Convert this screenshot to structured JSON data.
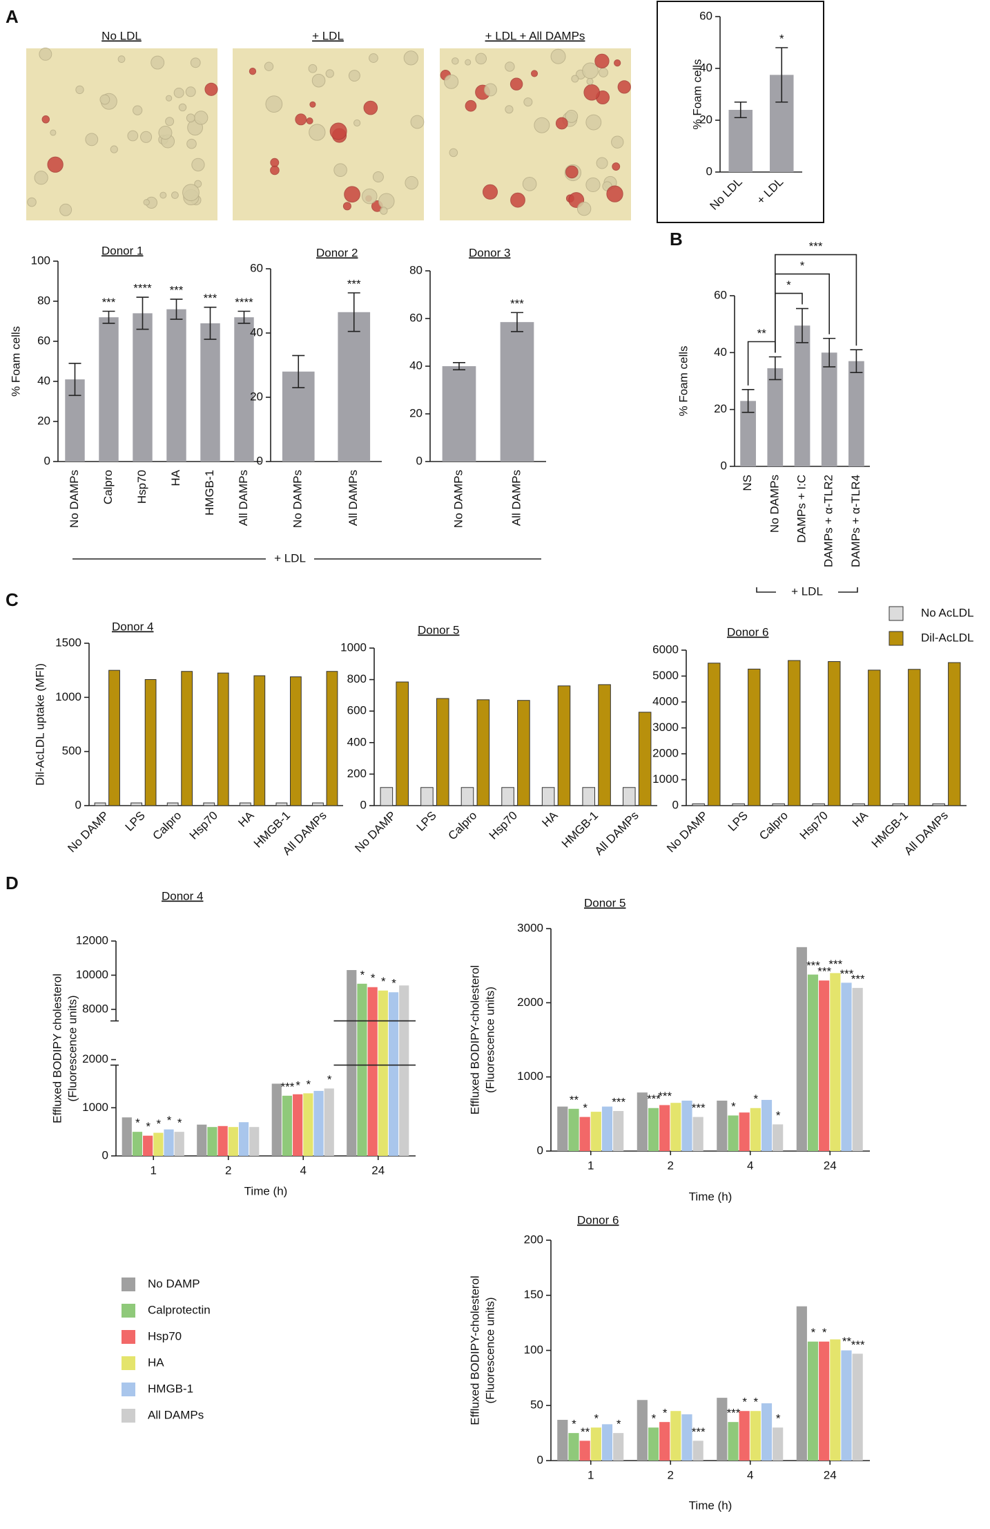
{
  "panels": [
    "A",
    "B",
    "C",
    "D"
  ],
  "image_labels": [
    "No LDL",
    "+ LDL",
    "+ LDL + All DAMPs"
  ],
  "group_labels": [
    "+ LDL",
    "+ LDL"
  ],
  "c_legend": [
    {
      "name": "No AcLDL",
      "color": "#dcdcdc"
    },
    {
      "name": "Dil-AcLDL",
      "color": "#b8900c"
    }
  ],
  "d_legend": [
    {
      "name": "No DAMP",
      "color": "#a0a0a0"
    },
    {
      "name": "Calprotectin",
      "color": "#8fc97a"
    },
    {
      "name": "Hsp70",
      "color": "#f26868"
    },
    {
      "name": "HA",
      "color": "#e4e46c"
    },
    {
      "name": "HMGB-1",
      "color": "#a9c6ec"
    },
    {
      "name": "All DAMPs",
      "color": "#cdcdcd"
    }
  ],
  "chart_data": [
    {
      "type": "bar",
      "ylabel": [
        "% Foam cells"
      ],
      "categories": [
        "No LDL",
        "+ LDL"
      ],
      "values": [
        24,
        37.5
      ],
      "errors": [
        3,
        10.5
      ],
      "annotations": [
        null,
        "*"
      ],
      "ylim": [
        0,
        60
      ],
      "yticks": [
        0,
        20,
        40,
        60
      ],
      "color": "#a2a2a8"
    },
    {
      "type": "bar",
      "title": "Donor 1",
      "ylabel": [
        "% Foam cells"
      ],
      "categories": [
        "No DAMPs",
        "Calpro",
        "Hsp70",
        "HA",
        "HMGB-1",
        "All DAMPs"
      ],
      "values": [
        41,
        72,
        74,
        76,
        69,
        72
      ],
      "errors": [
        8,
        3,
        8,
        5,
        8,
        3
      ],
      "annotations": [
        null,
        "***",
        "****",
        "***",
        "***",
        "****"
      ],
      "ylim": [
        0,
        100
      ],
      "yticks": [
        0,
        20,
        40,
        60,
        80,
        100
      ],
      "color": "#a2a2a8"
    },
    {
      "type": "bar",
      "title": "Donor 2",
      "categories": [
        "No DAMPs",
        "All DAMPs"
      ],
      "values": [
        28,
        46.5
      ],
      "errors": [
        5,
        6
      ],
      "annotations": [
        null,
        "***"
      ],
      "ylim": [
        0,
        60
      ],
      "yticks": [
        0,
        20,
        40,
        60
      ],
      "color": "#a2a2a8"
    },
    {
      "type": "bar",
      "title": "Donor 3",
      "categories": [
        "No DAMPs",
        "All DAMPs"
      ],
      "values": [
        40,
        58.5
      ],
      "errors": [
        1.5,
        4
      ],
      "annotations": [
        null,
        "***"
      ],
      "ylim": [
        0,
        80
      ],
      "yticks": [
        0,
        20,
        40,
        60,
        80
      ],
      "color": "#a2a2a8"
    },
    {
      "type": "bar",
      "ylabel": [
        "% Foam cells"
      ],
      "categories": [
        "NS",
        "No DAMPs",
        "DAMPs + I:C",
        "DAMPs + α-TLR2",
        "DAMPs + α-TLR4"
      ],
      "values": [
        23,
        34.5,
        49.5,
        40,
        37
      ],
      "errors": [
        4,
        4,
        6,
        5,
        4
      ],
      "comparisons": [
        {
          "pair": [
            0,
            1
          ],
          "label": "**"
        },
        {
          "pair": [
            1,
            2
          ],
          "label": "*"
        },
        {
          "pair": [
            1,
            3
          ],
          "label": "*"
        },
        {
          "pair": [
            1,
            4
          ],
          "label": "***"
        }
      ],
      "ylim": [
        0,
        60
      ],
      "yticks": [
        0,
        20,
        40,
        60
      ],
      "color": "#a2a2a8"
    },
    {
      "type": "grouped_bar",
      "title": "Donor 4",
      "ylabel": [
        "Dil-AcLDL uptake (MFI)"
      ],
      "categories": [
        "No DAMP",
        "LPS",
        "Calpro",
        "Hsp70",
        "HA",
        "HMGB-1",
        "All DAMPs"
      ],
      "series": [
        {
          "values": [
            25,
            25,
            25,
            25,
            25,
            25,
            25
          ]
        },
        {
          "values": [
            1250,
            1165,
            1240,
            1225,
            1200,
            1190,
            1240
          ]
        }
      ],
      "ylim": [
        0,
        1500
      ],
      "yticks": [
        0,
        500,
        1000,
        1500
      ]
    },
    {
      "type": "grouped_bar",
      "title": "Donor 5",
      "categories": [
        "No DAMP",
        "LPS",
        "Calpro",
        "Hsp70",
        "HA",
        "HMGB-1",
        "All DAMPs"
      ],
      "series": [
        {
          "values": [
            115,
            115,
            115,
            115,
            115,
            115,
            115
          ]
        },
        {
          "values": [
            785,
            680,
            672,
            668,
            760,
            768,
            593
          ]
        }
      ],
      "ylim": [
        0,
        1000
      ],
      "yticks": [
        0,
        200,
        400,
        600,
        800,
        1000
      ]
    },
    {
      "type": "grouped_bar",
      "title": "Donor 6",
      "categories": [
        "No DAMP",
        "LPS",
        "Calpro",
        "Hsp70",
        "HA",
        "HMGB-1",
        "All DAMPs"
      ],
      "series": [
        {
          "values": [
            70,
            70,
            70,
            70,
            70,
            70,
            70
          ]
        },
        {
          "values": [
            5500,
            5270,
            5600,
            5560,
            5230,
            5260,
            5520
          ]
        }
      ],
      "ylim": [
        0,
        6000
      ],
      "yticks": [
        0,
        1000,
        2000,
        3000,
        4000,
        5000,
        6000
      ]
    },
    {
      "type": "efflux_bar",
      "title": "Donor 4",
      "ylabel": [
        "Effluxed BODIPY cholesterol",
        "(Fluorescence units)"
      ],
      "xlabel": "Time (h)",
      "categories": [
        "1",
        "2",
        "4",
        "24"
      ],
      "ybreak": [
        2000,
        7000
      ],
      "ylim": [
        0,
        12000
      ],
      "yticks": [
        0,
        1000,
        2000,
        8000,
        10000,
        12000
      ],
      "series": [
        {
          "values": [
            800,
            650,
            1500,
            10300
          ],
          "annotations": [
            null,
            null,
            null,
            null
          ]
        },
        {
          "values": [
            500,
            600,
            1250,
            9500
          ],
          "annotations": [
            "*",
            null,
            "***",
            "*"
          ]
        },
        {
          "values": [
            420,
            620,
            1280,
            9300
          ],
          "annotations": [
            "*",
            null,
            "*",
            "*"
          ]
        },
        {
          "values": [
            480,
            600,
            1300,
            9100
          ],
          "annotations": [
            "*",
            null,
            "*",
            "*"
          ]
        },
        {
          "values": [
            550,
            700,
            1350,
            9000
          ],
          "annotations": [
            "*",
            null,
            null,
            "*"
          ]
        },
        {
          "values": [
            500,
            600,
            1400,
            9400
          ],
          "annotations": [
            "*",
            null,
            "*",
            null
          ]
        }
      ]
    },
    {
      "type": "efflux_bar",
      "title": "Donor 5",
      "ylabel": [
        "Effluxed BODIPY-cholesterol",
        "(Fluorescence units)"
      ],
      "xlabel": "Time (h)",
      "categories": [
        "1",
        "2",
        "4",
        "24"
      ],
      "ylim": [
        0,
        3000
      ],
      "yticks": [
        0,
        1000,
        2000,
        3000
      ],
      "series": [
        {
          "values": [
            600,
            790,
            680,
            2750
          ],
          "annotations": [
            null,
            null,
            null,
            null
          ]
        },
        {
          "values": [
            570,
            580,
            480,
            2380
          ],
          "annotations": [
            "**",
            "***",
            "*",
            "***"
          ]
        },
        {
          "values": [
            460,
            620,
            520,
            2300
          ],
          "annotations": [
            "*",
            "***",
            null,
            "***"
          ]
        },
        {
          "values": [
            530,
            650,
            580,
            2400
          ],
          "annotations": [
            null,
            null,
            "*",
            "***"
          ]
        },
        {
          "values": [
            600,
            680,
            690,
            2270
          ],
          "annotations": [
            null,
            null,
            null,
            "***"
          ]
        },
        {
          "values": [
            540,
            460,
            360,
            2200
          ],
          "annotations": [
            "***",
            "***",
            "*",
            "***"
          ]
        }
      ]
    },
    {
      "type": "efflux_bar",
      "title": "Donor 6",
      "ylabel": [
        "Effluxed BODIPY-cholesterol",
        "(Fluorescence units)"
      ],
      "xlabel": "Time (h)",
      "categories": [
        "1",
        "2",
        "4",
        "24"
      ],
      "ylim": [
        0,
        200
      ],
      "yticks": [
        0,
        50,
        100,
        150,
        200
      ],
      "series": [
        {
          "values": [
            37,
            55,
            57,
            140
          ],
          "annotations": [
            null,
            null,
            null,
            null
          ]
        },
        {
          "values": [
            25,
            30,
            35,
            108
          ],
          "annotations": [
            "*",
            "*",
            "***",
            "*"
          ]
        },
        {
          "values": [
            18,
            35,
            45,
            108
          ],
          "annotations": [
            "**",
            "*",
            "*",
            "*"
          ]
        },
        {
          "values": [
            30,
            45,
            45,
            110
          ],
          "annotations": [
            "*",
            null,
            "*",
            null
          ]
        },
        {
          "values": [
            33,
            42,
            52,
            100
          ],
          "annotations": [
            null,
            null,
            null,
            "**"
          ]
        },
        {
          "values": [
            25,
            18,
            30,
            97
          ],
          "annotations": [
            "*",
            "***",
            "*",
            "***"
          ]
        }
      ]
    }
  ]
}
